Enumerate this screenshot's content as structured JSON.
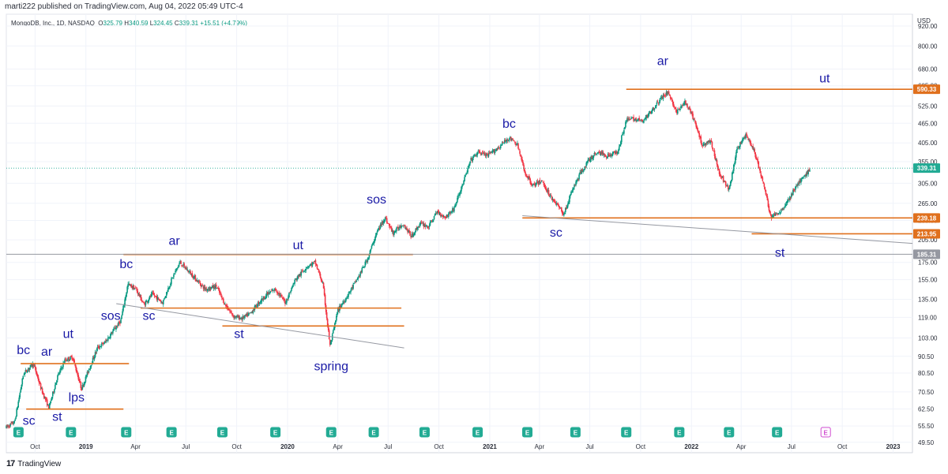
{
  "header": {
    "published": "marti222 published on TradingView.com, Aug 04, 2022 05:49 UTC-4",
    "symbol": "MongoDB, Inc., 1D, NASDAQ",
    "open_label": "O",
    "open": "325.79",
    "high_label": "H",
    "high": "340.59",
    "low_label": "L",
    "low": "324.45",
    "close_label": "C",
    "close": "339.31",
    "change": "+15.51 (+4.79%)"
  },
  "footer": {
    "brand": "TradingView",
    "logo": "17"
  },
  "colors": {
    "up": "#089981",
    "down": "#f23645",
    "level": "#e0701d",
    "trend": "#9598a1",
    "annotation": "#1a1aa6",
    "earnings": "#22ab94",
    "earnings_future": "#d04bd0"
  },
  "chart_data": {
    "type": "candlestick",
    "title": "",
    "currency": "USD",
    "yscale": "log",
    "ylim": [
      46,
      1000
    ],
    "xlim": [
      "2018-08-10",
      "2023-02-05"
    ],
    "y_ticks": [
      "920.00",
      "800.00",
      "680.00",
      "605.00",
      "525.00",
      "465.00",
      "405.00",
      "355.00",
      "305.00",
      "265.00",
      "235.00",
      "205.00",
      "175.00",
      "155.00",
      "135.00",
      "119.00",
      "103.00",
      "90.50",
      "80.50",
      "70.50",
      "62.50",
      "55.50",
      "49.50"
    ],
    "x_ticks": [
      {
        "label": "Oct",
        "date": "2018-10-01"
      },
      {
        "label": "2019",
        "date": "2019-01-01"
      },
      {
        "label": "Apr",
        "date": "2019-04-01"
      },
      {
        "label": "Jul",
        "date": "2019-07-01"
      },
      {
        "label": "Oct",
        "date": "2019-10-01"
      },
      {
        "label": "2020",
        "date": "2020-01-01"
      },
      {
        "label": "Apr",
        "date": "2020-04-01"
      },
      {
        "label": "Jul",
        "date": "2020-07-01"
      },
      {
        "label": "Oct",
        "date": "2020-10-01"
      },
      {
        "label": "2021",
        "date": "2021-01-01"
      },
      {
        "label": "Apr",
        "date": "2021-04-01"
      },
      {
        "label": "Jul",
        "date": "2021-07-01"
      },
      {
        "label": "Oct",
        "date": "2021-10-01"
      },
      {
        "label": "2022",
        "date": "2022-01-01"
      },
      {
        "label": "Apr",
        "date": "2022-04-01"
      },
      {
        "label": "Jul",
        "date": "2022-07-01"
      },
      {
        "label": "Oct",
        "date": "2022-10-01"
      },
      {
        "label": "2023",
        "date": "2023-01-01"
      }
    ],
    "price_badges": [
      {
        "label": "590.33",
        "value": 590.33,
        "kind": "level"
      },
      {
        "label": "339.31",
        "value": 339.31,
        "kind": "last"
      },
      {
        "label": "239.18",
        "value": 239.18,
        "kind": "level"
      },
      {
        "label": "213.95",
        "value": 213.95,
        "kind": "level"
      },
      {
        "label": "185.31",
        "value": 185.31,
        "kind": "line"
      }
    ],
    "horizontal_levels": [
      {
        "from": "2018-09-05",
        "to": "2019-03-20",
        "value": 86
      },
      {
        "from": "2018-09-15",
        "to": "2019-03-10",
        "value": 62.5
      },
      {
        "from": "2019-03-10",
        "to": "2020-08-15",
        "value": 185
      },
      {
        "from": "2019-04-10",
        "to": "2020-07-25",
        "value": 127
      },
      {
        "from": "2019-09-05",
        "to": "2020-07-30",
        "value": 112
      },
      {
        "from": "2021-03-01",
        "to": "2023-02-05",
        "value": 239.18
      },
      {
        "from": "2022-04-20",
        "to": "2023-02-05",
        "value": 213.95
      },
      {
        "from": "2021-09-05",
        "to": "2023-02-05",
        "value": 590.33
      }
    ],
    "full_lines": [
      {
        "value": 185.31
      }
    ],
    "trend_lines": [
      {
        "from": "2019-02-25",
        "from_value": 131,
        "to": "2020-07-30",
        "to_value": 96
      },
      {
        "from": "2021-03-01",
        "from_value": 243,
        "to": "2023-02-05",
        "to_value": 200
      }
    ],
    "annotations": [
      {
        "text": "bc",
        "date": "2018-09-10",
        "value": 92
      },
      {
        "text": "ar",
        "date": "2018-10-22",
        "value": 91
      },
      {
        "text": "ut",
        "date": "2018-11-30",
        "value": 103
      },
      {
        "text": "sos",
        "date": "2019-02-15",
        "value": 117
      },
      {
        "text": "lps",
        "date": "2018-12-15",
        "value": 66
      },
      {
        "text": "sc",
        "date": "2018-09-20",
        "value": 56
      },
      {
        "text": "st",
        "date": "2018-11-10",
        "value": 57.5
      },
      {
        "text": "bc",
        "date": "2019-03-15",
        "value": 168
      },
      {
        "text": "ar",
        "date": "2019-06-10",
        "value": 198
      },
      {
        "text": "sc",
        "date": "2019-04-25",
        "value": 117
      },
      {
        "text": "st",
        "date": "2019-10-05",
        "value": 103
      },
      {
        "text": "ut",
        "date": "2020-01-20",
        "value": 192
      },
      {
        "text": "spring",
        "date": "2020-03-20",
        "value": 82
      },
      {
        "text": "sos",
        "date": "2020-06-10",
        "value": 265
      },
      {
        "text": "bc",
        "date": "2021-02-05",
        "value": 450
      },
      {
        "text": "sc",
        "date": "2021-05-01",
        "value": 210
      },
      {
        "text": "ar",
        "date": "2021-11-10",
        "value": 700
      },
      {
        "text": "ut",
        "date": "2022-08-30",
        "value": 620
      },
      {
        "text": "st",
        "date": "2022-06-10",
        "value": 182
      }
    ],
    "earnings_dates": [
      "2018-09-01",
      "2018-12-05",
      "2019-03-15",
      "2019-06-05",
      "2019-09-05",
      "2019-12-10",
      "2020-03-20",
      "2020-06-05",
      "2020-09-05",
      "2020-12-10",
      "2021-03-10",
      "2021-06-05",
      "2021-09-05",
      "2021-12-10",
      "2022-03-10",
      "2022-06-05",
      "2022-09-01"
    ],
    "earnings_label": "E",
    "path": [
      [
        "2018-08-10",
        55
      ],
      [
        "2018-08-25",
        57
      ],
      [
        "2018-09-10",
        80
      ],
      [
        "2018-09-28",
        86
      ],
      [
        "2018-10-12",
        72
      ],
      [
        "2018-10-26",
        63
      ],
      [
        "2018-11-10",
        78
      ],
      [
        "2018-11-24",
        88
      ],
      [
        "2018-12-08",
        90
      ],
      [
        "2018-12-24",
        72
      ],
      [
        "2019-01-08",
        84
      ],
      [
        "2019-01-22",
        96
      ],
      [
        "2019-02-05",
        100
      ],
      [
        "2019-02-19",
        108
      ],
      [
        "2019-03-05",
        116
      ],
      [
        "2019-03-18",
        150
      ],
      [
        "2019-04-02",
        145
      ],
      [
        "2019-04-16",
        130
      ],
      [
        "2019-05-01",
        140
      ],
      [
        "2019-05-20",
        132
      ],
      [
        "2019-06-05",
        155
      ],
      [
        "2019-06-20",
        175
      ],
      [
        "2019-07-05",
        165
      ],
      [
        "2019-07-20",
        155
      ],
      [
        "2019-08-05",
        145
      ],
      [
        "2019-08-25",
        148
      ],
      [
        "2019-09-10",
        130
      ],
      [
        "2019-09-25",
        120
      ],
      [
        "2019-10-10",
        118
      ],
      [
        "2019-10-25",
        122
      ],
      [
        "2019-11-10",
        132
      ],
      [
        "2019-11-25",
        140
      ],
      [
        "2019-12-10",
        145
      ],
      [
        "2019-12-28",
        132
      ],
      [
        "2020-01-15",
        155
      ],
      [
        "2020-02-05",
        170
      ],
      [
        "2020-02-20",
        175
      ],
      [
        "2020-03-05",
        150
      ],
      [
        "2020-03-18",
        97
      ],
      [
        "2020-04-01",
        125
      ],
      [
        "2020-04-20",
        140
      ],
      [
        "2020-05-10",
        160
      ],
      [
        "2020-05-25",
        180
      ],
      [
        "2020-06-10",
        215
      ],
      [
        "2020-06-25",
        240
      ],
      [
        "2020-07-10",
        215
      ],
      [
        "2020-07-28",
        230
      ],
      [
        "2020-08-12",
        210
      ],
      [
        "2020-08-28",
        230
      ],
      [
        "2020-09-12",
        225
      ],
      [
        "2020-09-28",
        250
      ],
      [
        "2020-10-12",
        240
      ],
      [
        "2020-10-28",
        255
      ],
      [
        "2020-11-12",
        300
      ],
      [
        "2020-11-28",
        360
      ],
      [
        "2020-12-12",
        380
      ],
      [
        "2020-12-28",
        370
      ],
      [
        "2021-01-15",
        390
      ],
      [
        "2021-02-05",
        420
      ],
      [
        "2021-02-20",
        400
      ],
      [
        "2021-03-05",
        330
      ],
      [
        "2021-03-20",
        300
      ],
      [
        "2021-04-05",
        310
      ],
      [
        "2021-04-20",
        280
      ],
      [
        "2021-05-05",
        260
      ],
      [
        "2021-05-15",
        245
      ],
      [
        "2021-05-30",
        290
      ],
      [
        "2021-06-15",
        330
      ],
      [
        "2021-06-30",
        360
      ],
      [
        "2021-07-15",
        380
      ],
      [
        "2021-08-01",
        370
      ],
      [
        "2021-08-20",
        380
      ],
      [
        "2021-09-05",
        475
      ],
      [
        "2021-09-20",
        480
      ],
      [
        "2021-10-05",
        470
      ],
      [
        "2021-10-25",
        520
      ],
      [
        "2021-11-10",
        560
      ],
      [
        "2021-11-20",
        580
      ],
      [
        "2021-12-05",
        500
      ],
      [
        "2021-12-20",
        540
      ],
      [
        "2022-01-05",
        480
      ],
      [
        "2022-01-20",
        400
      ],
      [
        "2022-02-05",
        410
      ],
      [
        "2022-02-20",
        330
      ],
      [
        "2022-03-10",
        290
      ],
      [
        "2022-03-25",
        390
      ],
      [
        "2022-04-10",
        430
      ],
      [
        "2022-04-25",
        380
      ],
      [
        "2022-05-10",
        310
      ],
      [
        "2022-05-25",
        240
      ],
      [
        "2022-06-10",
        250
      ],
      [
        "2022-06-25",
        270
      ],
      [
        "2022-07-10",
        300
      ],
      [
        "2022-07-25",
        320
      ],
      [
        "2022-08-04",
        339.31
      ]
    ]
  }
}
